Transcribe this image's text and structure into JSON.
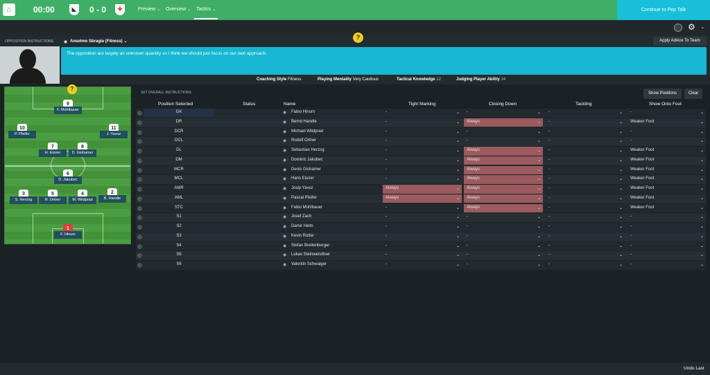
{
  "topbar": {
    "clock": "00:00",
    "score": "0 - 0",
    "menus": [
      "Preview",
      "Overview",
      "Tactics"
    ],
    "cta": "Continue to Pep Talk"
  },
  "panel": {
    "section_label": "OPPOSITION INSTRUCTIONS",
    "coach_select": "Anselmo Sbragia (Fitness)",
    "apply_button": "Apply Advice To Team",
    "advice": "The opposition are largely an unknown quantity so I think we should just focus on our own approach.",
    "help": "?"
  },
  "coach_info": [
    {
      "label": "Coaching Style",
      "value": "Fitness"
    },
    {
      "label": "Playing Mentality",
      "value": "Very Cautious"
    },
    {
      "label": "Tactical Knowledge",
      "value": "12"
    },
    {
      "label": "Judging Player Ability",
      "value": "14"
    }
  ],
  "pitch_players": [
    {
      "num": "9",
      "name": "F. Mühlbauer"
    },
    {
      "num": "10",
      "name": "P. Pfeifer"
    },
    {
      "num": "11",
      "name": "J. Yavuz"
    },
    {
      "num": "7",
      "name": "H. Eisner"
    },
    {
      "num": "8",
      "name": "D. Gishamer"
    },
    {
      "num": "6",
      "name": "D. Jakubec"
    },
    {
      "num": "3",
      "name": "S. Herzog"
    },
    {
      "num": "5",
      "name": "R. Ortner"
    },
    {
      "num": "4",
      "name": "M. Wildprad"
    },
    {
      "num": "2",
      "name": "B. Handle"
    },
    {
      "num": "1",
      "name": "F. Hinum"
    }
  ],
  "instructions": {
    "set_label": "SET OVERALL INSTRUCTIONS",
    "show_positions": "Show Positions",
    "clear": "Clear",
    "headers": {
      "position": "Position Selected",
      "status": "Status",
      "name": "Name",
      "tight": "Tight Marking",
      "closing": "Closing Down",
      "tackling": "Tackling",
      "foot": "Show Onto Foot"
    },
    "rows": [
      {
        "pos": "GK",
        "name": "Fabio Hinum",
        "tight": "-",
        "closing": "-",
        "tackling": "-",
        "foot": "-"
      },
      {
        "pos": "DR",
        "name": "Bernd Handle",
        "tight": "-",
        "closing": "Always",
        "tackling": "-",
        "foot": "Weaker Foot"
      },
      {
        "pos": "DCR",
        "name": "Michael Wildprad",
        "tight": "-",
        "closing": "-",
        "tackling": "-",
        "foot": "-"
      },
      {
        "pos": "DCL",
        "name": "Rudolf Ortner",
        "tight": "-",
        "closing": "-",
        "tackling": "-",
        "foot": "-"
      },
      {
        "pos": "DL",
        "name": "Sebastian Herzog",
        "tight": "-",
        "closing": "Always",
        "tackling": "-",
        "foot": "Weaker Foot"
      },
      {
        "pos": "DM",
        "name": "Dominic Jakubec",
        "tight": "-",
        "closing": "Always",
        "tackling": "-",
        "foot": "Weaker Foot"
      },
      {
        "pos": "MCR",
        "name": "Denis Gishamer",
        "tight": "-",
        "closing": "Always",
        "tackling": "-",
        "foot": "Weaker Foot"
      },
      {
        "pos": "MCL",
        "name": "Hans Eisner",
        "tight": "-",
        "closing": "Always",
        "tackling": "-",
        "foot": "Weaker Foot"
      },
      {
        "pos": "AMR",
        "name": "Josip Yavuz",
        "tight": "Always",
        "closing": "Always",
        "tackling": "-",
        "foot": "Weaker Foot"
      },
      {
        "pos": "AML",
        "name": "Pascal Pfeifer",
        "tight": "Always",
        "closing": "Always",
        "tackling": "-",
        "foot": "Weaker Foot"
      },
      {
        "pos": "STC",
        "name": "Fabio Mühlbauer",
        "tight": "-",
        "closing": "Always",
        "tackling": "-",
        "foot": "Weaker Foot"
      },
      {
        "pos": "S1",
        "name": "Josef Zach",
        "tight": "-",
        "closing": "-",
        "tackling": "-",
        "foot": "-"
      },
      {
        "pos": "S2",
        "name": "Damir Helm",
        "tight": "-",
        "closing": "-",
        "tackling": "-",
        "foot": "-"
      },
      {
        "pos": "S3",
        "name": "Kevin Rotter",
        "tight": "-",
        "closing": "-",
        "tackling": "-",
        "foot": "-"
      },
      {
        "pos": "S4",
        "name": "Stefan Breitenberger",
        "tight": "-",
        "closing": "-",
        "tackling": "-",
        "foot": "-"
      },
      {
        "pos": "S5",
        "name": "Lukas Steinwendtner",
        "tight": "-",
        "closing": "-",
        "tackling": "-",
        "foot": "-"
      },
      {
        "pos": "S6",
        "name": "Valentin Schwaiger",
        "tight": "-",
        "closing": "-",
        "tackling": "-",
        "foot": "-"
      }
    ]
  },
  "footer": {
    "undo": "Undo Last"
  },
  "colors": {
    "accent_green": "#3fae67",
    "accent_cyan": "#18bfd9",
    "highlight": "#9a5a5e"
  }
}
